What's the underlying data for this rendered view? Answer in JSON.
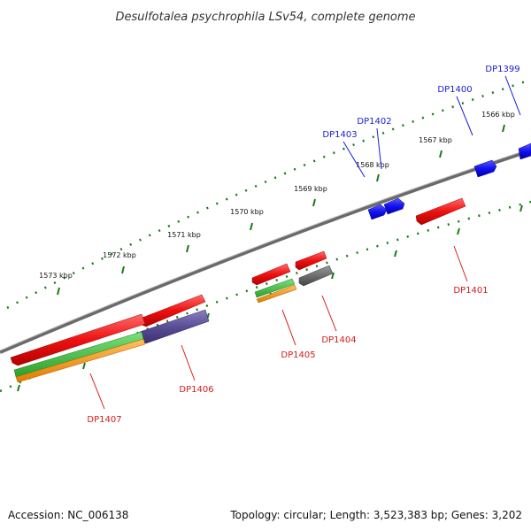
{
  "title": "Desulfotalea psychrophila LSv54, complete genome",
  "ticks": [
    {
      "label": "1566 kbp"
    },
    {
      "label": "1567 kbp"
    },
    {
      "label": "1568 kbp"
    },
    {
      "label": "1569 kbp"
    },
    {
      "label": "1570 kbp"
    },
    {
      "label": "1571 kbp"
    },
    {
      "label": "1572 kbp"
    },
    {
      "label": "1573 kbp"
    }
  ],
  "genes": {
    "upper": [
      {
        "name": "DP1399",
        "color": "#1111ee"
      },
      {
        "name": "DP1400",
        "color": "#1111ee"
      },
      {
        "name": "DP1402",
        "color": "#1111ee"
      },
      {
        "name": "DP1403",
        "color": "#1111ee"
      }
    ],
    "lower": [
      {
        "name": "DP1401",
        "color": "#ee1111"
      },
      {
        "name": "DP1404",
        "color": "#ee1111"
      },
      {
        "name": "DP1405",
        "color": "#ee1111"
      },
      {
        "name": "DP1406",
        "color": "#ee1111"
      },
      {
        "name": "DP1407",
        "color": "#ee1111"
      }
    ]
  },
  "features": {
    "colors": {
      "red": "#ee1111",
      "blue": "#1111ee",
      "slate": "#5a4e96",
      "gray": "#6e6e6e",
      "green": "#3cc43c",
      "orange": "#f39a1a",
      "genome": "#7a7a7a",
      "tick": "#1a7a1a"
    }
  },
  "footer": {
    "accession": "Accession: NC_006138",
    "summary": "Topology: circular; Length: 3,523,383 bp; Genes: 3,202"
  }
}
